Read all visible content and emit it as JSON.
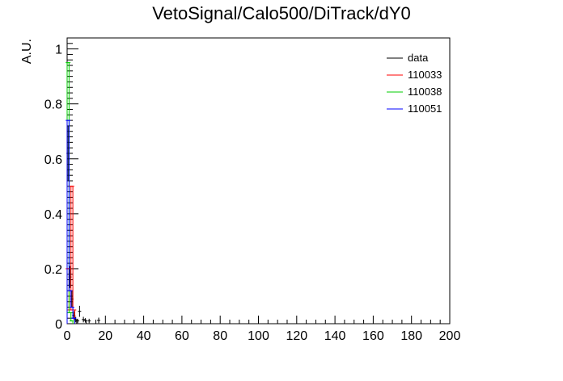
{
  "chart_data": {
    "type": "line",
    "title": "VetoSignal/Calo500/DiTrack/dY0",
    "xlabel": "",
    "ylabel": "A.U.",
    "xlim": [
      0,
      200
    ],
    "ylim": [
      0,
      1.04
    ],
    "x_ticks": [
      0,
      20,
      40,
      60,
      80,
      100,
      120,
      140,
      160,
      180,
      200
    ],
    "y_ticks": [
      0,
      0.2,
      0.4,
      0.6,
      0.8,
      1
    ],
    "x_tick_labels": [
      "0",
      "20",
      "40",
      "60",
      "80",
      "100",
      "120",
      "140",
      "160",
      "180",
      "200"
    ],
    "y_tick_labels": [
      "0",
      "0.2",
      "0.4",
      "0.6",
      "0.8",
      "1"
    ],
    "grid": false,
    "legend_position": "top-right",
    "series": [
      {
        "name": "data",
        "color": "#000000",
        "style": "points",
        "x": [
          0.5,
          1.5,
          2.5,
          3.5,
          4.5,
          5.5,
          6.5,
          8.5,
          9.5,
          11.5,
          16.5
        ],
        "y": [
          0.62,
          0.17,
          0.09,
          0.03,
          0.015,
          0.01,
          0.045,
          0.015,
          0.012,
          0.01,
          0.012
        ],
        "yerr": [
          0.1,
          0.04,
          0.03,
          0.015,
          0.01,
          0.008,
          0.02,
          0.01,
          0.008,
          0.008,
          0.01
        ]
      },
      {
        "name": "110033",
        "color": "#ff0000",
        "style": "hist",
        "x": [
          0.5,
          1.5,
          2.5,
          3.5
        ],
        "y": [
          0.2,
          0.05,
          0.5,
          0.05
        ]
      },
      {
        "name": "110038",
        "color": "#00cc00",
        "style": "hist",
        "x": [
          0.5,
          1.5,
          2.5
        ],
        "y": [
          0.95,
          0.04,
          0.01
        ]
      },
      {
        "name": "110051",
        "color": "#0000ff",
        "style": "hist",
        "x": [
          0.5,
          1.5,
          2.5,
          3.5
        ],
        "y": [
          0.74,
          0.12,
          0.06,
          0.02
        ]
      }
    ]
  }
}
